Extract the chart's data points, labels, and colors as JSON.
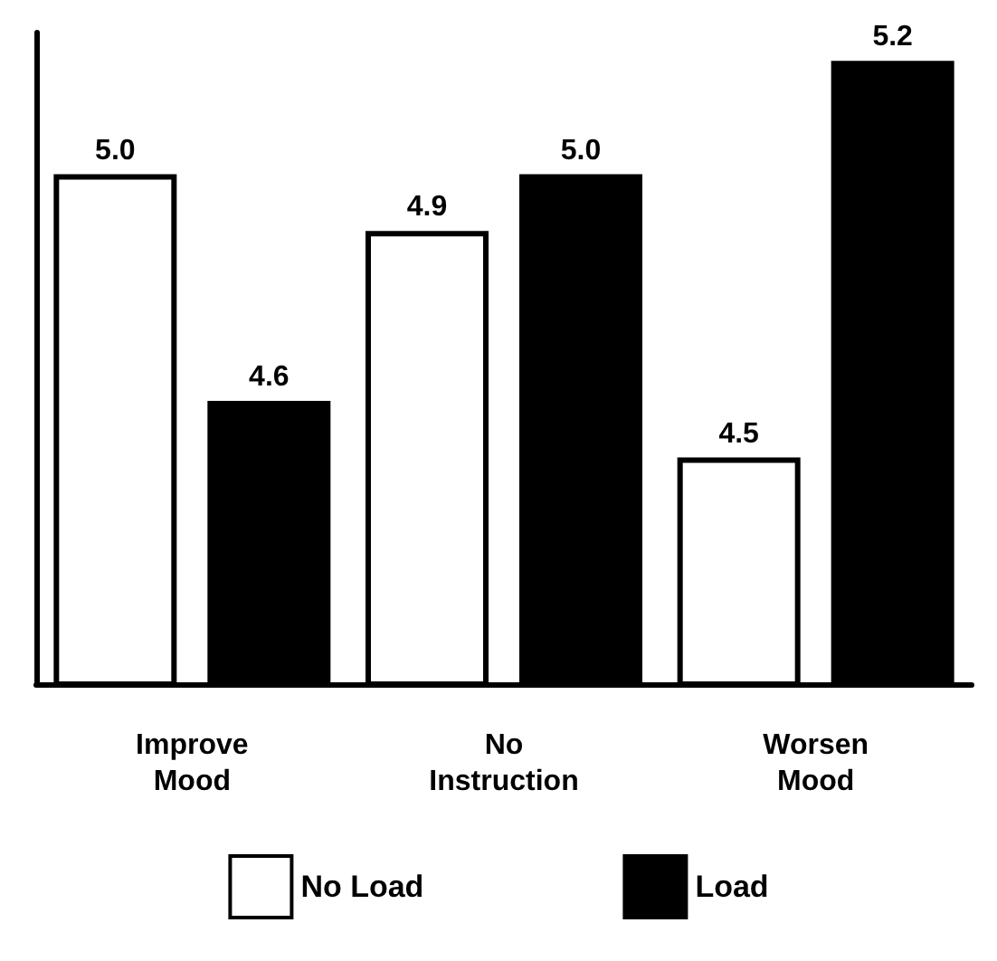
{
  "chart_data": {
    "type": "bar",
    "categories": [
      "Improve\nMood",
      "No\nInstruction",
      "Worsen\nMood"
    ],
    "series": [
      {
        "name": "No Load",
        "color": "#ffffff",
        "values": [
          5.0,
          4.9,
          4.5
        ],
        "value_labels": [
          "5.0",
          "4.9",
          "4.5"
        ]
      },
      {
        "name": "Load",
        "color": "#000000",
        "values": [
          4.6,
          5.0,
          5.2
        ],
        "value_labels": [
          "4.6",
          "5.0",
          "5.2"
        ]
      }
    ],
    "ylim": [
      4.1,
      5.25
    ],
    "tick_labels": "x",
    "legend": "bottom",
    "grid": false
  }
}
